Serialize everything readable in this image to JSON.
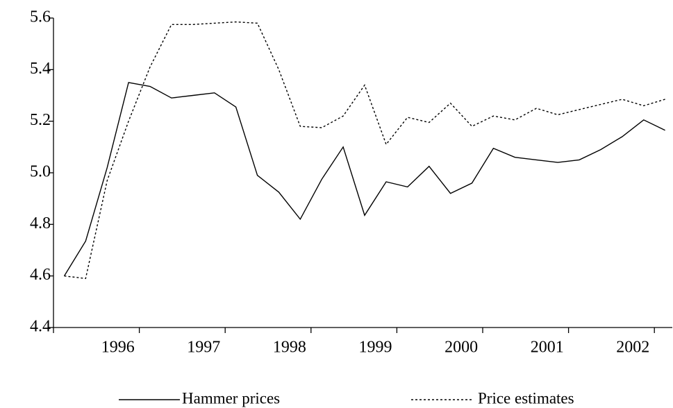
{
  "chart_data": {
    "type": "line",
    "categories": [
      null,
      null,
      null,
      "1996",
      null,
      null,
      null,
      "1997",
      null,
      null,
      null,
      "1998",
      null,
      null,
      null,
      "1999",
      null,
      null,
      null,
      "2000",
      null,
      null,
      null,
      "2001",
      null,
      null,
      null,
      "2002",
      null
    ],
    "series": [
      {
        "name": "Hammer prices",
        "color": "#000000",
        "dash": "solid",
        "values": [
          4.6,
          4.735,
          5.02,
          5.35,
          5.335,
          5.29,
          5.3,
          5.31,
          5.255,
          4.99,
          4.925,
          4.82,
          4.975,
          5.1,
          4.835,
          4.965,
          4.945,
          5.025,
          4.92,
          4.96,
          5.095,
          5.06,
          5.05,
          5.04,
          5.05,
          5.09,
          5.14,
          5.205,
          5.165
        ]
      },
      {
        "name": "Price estimates",
        "color": "#000000",
        "dash": "dotted",
        "values": [
          4.6,
          4.59,
          4.97,
          5.2,
          5.41,
          5.575,
          5.575,
          5.58,
          5.585,
          5.58,
          5.4,
          5.18,
          5.175,
          5.22,
          5.34,
          5.11,
          5.215,
          5.195,
          5.27,
          5.18,
          5.22,
          5.205,
          5.25,
          5.225,
          5.245,
          5.265,
          5.285,
          5.26,
          5.285
        ]
      }
    ],
    "ylim": [
      4.4,
      5.6
    ],
    "yticks": [
      4.4,
      4.6,
      4.8,
      {
        "value": 5,
        "label": "5.0"
      },
      5.2,
      5.4,
      5.6
    ],
    "grid": false,
    "legend": "bottom"
  }
}
